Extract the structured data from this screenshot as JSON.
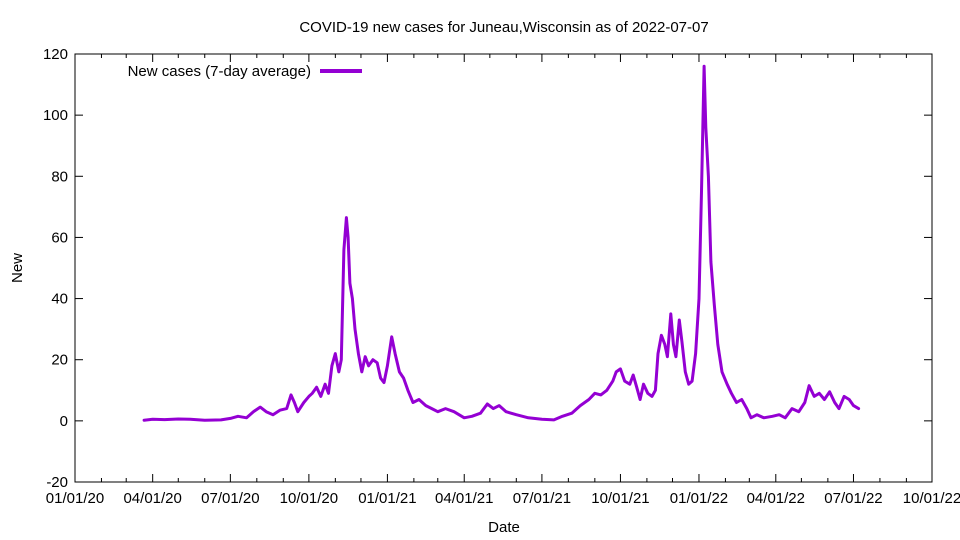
{
  "chart_data": {
    "type": "line",
    "title": "COVID-19 new cases for Juneau,Wisconsin as of 2022-07-07",
    "xlabel": "Date",
    "ylabel": "New",
    "x_ticks": [
      "01/01/20",
      "04/01/20",
      "07/01/20",
      "10/01/20",
      "01/01/21",
      "04/01/21",
      "07/01/21",
      "10/01/21",
      "01/01/22",
      "04/01/22",
      "07/01/22",
      "10/01/22"
    ],
    "xlim": [
      "2020-01-01",
      "2022-10-01"
    ],
    "ylim": [
      -20,
      120
    ],
    "y_ticks": [
      -20,
      0,
      20,
      40,
      60,
      80,
      100,
      120
    ],
    "grid": false,
    "legend_position": "top-left",
    "series": [
      {
        "name": "New cases (7-day average)",
        "color": "#9400d3",
        "points": [
          [
            "2020-03-22",
            0.2
          ],
          [
            "2020-04-01",
            0.5
          ],
          [
            "2020-04-15",
            0.4
          ],
          [
            "2020-05-01",
            0.6
          ],
          [
            "2020-05-15",
            0.5
          ],
          [
            "2020-06-01",
            0.2
          ],
          [
            "2020-06-20",
            0.3
          ],
          [
            "2020-07-01",
            0.8
          ],
          [
            "2020-07-10",
            1.5
          ],
          [
            "2020-07-20",
            1.0
          ],
          [
            "2020-07-28",
            3.0
          ],
          [
            "2020-08-05",
            4.5
          ],
          [
            "2020-08-12",
            3.0
          ],
          [
            "2020-08-20",
            2.0
          ],
          [
            "2020-08-28",
            3.5
          ],
          [
            "2020-09-05",
            4.0
          ],
          [
            "2020-09-10",
            8.5
          ],
          [
            "2020-09-14",
            6.0
          ],
          [
            "2020-09-18",
            3.0
          ],
          [
            "2020-09-25",
            6.0
          ],
          [
            "2020-10-01",
            8.0
          ],
          [
            "2020-10-05",
            9.0
          ],
          [
            "2020-10-10",
            11.0
          ],
          [
            "2020-10-15",
            8.0
          ],
          [
            "2020-10-20",
            12.0
          ],
          [
            "2020-10-24",
            9.0
          ],
          [
            "2020-10-28",
            18.0
          ],
          [
            "2020-11-01",
            22.0
          ],
          [
            "2020-11-05",
            16.0
          ],
          [
            "2020-11-08",
            20.0
          ],
          [
            "2020-11-11",
            56.0
          ],
          [
            "2020-11-14",
            66.5
          ],
          [
            "2020-11-16",
            60.0
          ],
          [
            "2020-11-18",
            45.0
          ],
          [
            "2020-11-21",
            40.0
          ],
          [
            "2020-11-24",
            30.0
          ],
          [
            "2020-11-28",
            22.0
          ],
          [
            "2020-12-02",
            16.0
          ],
          [
            "2020-12-06",
            21.0
          ],
          [
            "2020-12-10",
            18.0
          ],
          [
            "2020-12-15",
            20.0
          ],
          [
            "2020-12-20",
            19.0
          ],
          [
            "2020-12-24",
            14.0
          ],
          [
            "2020-12-28",
            12.5
          ],
          [
            "2021-01-01",
            18.0
          ],
          [
            "2021-01-06",
            27.5
          ],
          [
            "2021-01-10",
            22.0
          ],
          [
            "2021-01-15",
            16.0
          ],
          [
            "2021-01-20",
            14.0
          ],
          [
            "2021-01-25",
            10.0
          ],
          [
            "2021-01-31",
            6.0
          ],
          [
            "2021-02-07",
            7.0
          ],
          [
            "2021-02-15",
            5.0
          ],
          [
            "2021-02-22",
            4.0
          ],
          [
            "2021-03-01",
            3.0
          ],
          [
            "2021-03-10",
            4.0
          ],
          [
            "2021-03-20",
            3.0
          ],
          [
            "2021-04-01",
            1.0
          ],
          [
            "2021-04-10",
            1.5
          ],
          [
            "2021-04-20",
            2.5
          ],
          [
            "2021-04-28",
            5.5
          ],
          [
            "2021-05-05",
            4.0
          ],
          [
            "2021-05-12",
            5.0
          ],
          [
            "2021-05-20",
            3.0
          ],
          [
            "2021-06-01",
            2.0
          ],
          [
            "2021-06-15",
            1.0
          ],
          [
            "2021-07-01",
            0.5
          ],
          [
            "2021-07-15",
            0.3
          ],
          [
            "2021-07-25",
            1.5
          ],
          [
            "2021-08-05",
            2.5
          ],
          [
            "2021-08-15",
            5.0
          ],
          [
            "2021-08-25",
            7.0
          ],
          [
            "2021-09-01",
            9.0
          ],
          [
            "2021-09-08",
            8.5
          ],
          [
            "2021-09-15",
            10.0
          ],
          [
            "2021-09-22",
            13.0
          ],
          [
            "2021-09-26",
            16.0
          ],
          [
            "2021-10-01",
            17.0
          ],
          [
            "2021-10-06",
            13.0
          ],
          [
            "2021-10-12",
            12.0
          ],
          [
            "2021-10-16",
            15.0
          ],
          [
            "2021-10-20",
            11.0
          ],
          [
            "2021-10-24",
            7.0
          ],
          [
            "2021-10-28",
            12.0
          ],
          [
            "2021-11-02",
            9.0
          ],
          [
            "2021-11-07",
            8.0
          ],
          [
            "2021-11-11",
            10.0
          ],
          [
            "2021-11-14",
            22.0
          ],
          [
            "2021-11-18",
            28.0
          ],
          [
            "2021-11-22",
            25.0
          ],
          [
            "2021-11-25",
            21.0
          ],
          [
            "2021-11-29",
            35.0
          ],
          [
            "2021-12-02",
            25.0
          ],
          [
            "2021-12-05",
            21.0
          ],
          [
            "2021-12-09",
            33.0
          ],
          [
            "2021-12-12",
            26.0
          ],
          [
            "2021-12-16",
            16.0
          ],
          [
            "2021-12-20",
            12.0
          ],
          [
            "2021-12-24",
            13.0
          ],
          [
            "2021-12-28",
            22.0
          ],
          [
            "2022-01-01",
            40.0
          ],
          [
            "2022-01-04",
            75.0
          ],
          [
            "2022-01-07",
            116.0
          ],
          [
            "2022-01-09",
            96.0
          ],
          [
            "2022-01-12",
            80.0
          ],
          [
            "2022-01-15",
            52.0
          ],
          [
            "2022-01-19",
            38.0
          ],
          [
            "2022-01-23",
            25.0
          ],
          [
            "2022-01-28",
            16.0
          ],
          [
            "2022-02-03",
            12.0
          ],
          [
            "2022-02-08",
            9.0
          ],
          [
            "2022-02-14",
            6.0
          ],
          [
            "2022-02-20",
            7.0
          ],
          [
            "2022-02-26",
            4.0
          ],
          [
            "2022-03-03",
            1.0
          ],
          [
            "2022-03-10",
            2.0
          ],
          [
            "2022-03-18",
            1.0
          ],
          [
            "2022-03-28",
            1.5
          ],
          [
            "2022-04-05",
            2.0
          ],
          [
            "2022-04-12",
            1.0
          ],
          [
            "2022-04-20",
            4.0
          ],
          [
            "2022-04-28",
            3.0
          ],
          [
            "2022-05-05",
            6.0
          ],
          [
            "2022-05-10",
            11.5
          ],
          [
            "2022-05-16",
            8.0
          ],
          [
            "2022-05-22",
            9.0
          ],
          [
            "2022-05-28",
            7.0
          ],
          [
            "2022-06-03",
            9.5
          ],
          [
            "2022-06-09",
            6.0
          ],
          [
            "2022-06-14",
            4.0
          ],
          [
            "2022-06-20",
            8.0
          ],
          [
            "2022-06-26",
            7.0
          ],
          [
            "2022-07-01",
            5.0
          ],
          [
            "2022-07-07",
            4.0
          ]
        ]
      }
    ]
  }
}
